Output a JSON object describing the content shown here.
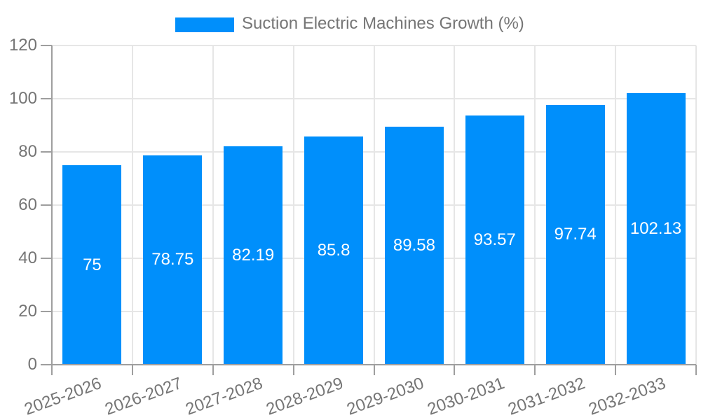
{
  "chart_data": {
    "type": "bar",
    "title": "Suction Electric Machines Growth (%)",
    "legend_position": "top",
    "categories": [
      "2025-2026",
      "2026-2027",
      "2027-2028",
      "2028-2029",
      "2029-2030",
      "2030-2031",
      "2031-2032",
      "2032-2033"
    ],
    "series": [
      {
        "name": "Suction Electric Machines Growth (%)",
        "values": [
          75,
          78.75,
          82.19,
          85.8,
          89.58,
          93.57,
          97.74,
          102.13
        ],
        "labels": [
          "75",
          "78.75",
          "82.19",
          "85.8",
          "89.58",
          "93.57",
          "97.74",
          "102.13"
        ]
      }
    ],
    "xlabel": "",
    "ylabel": "",
    "ylim": [
      0,
      120
    ],
    "yticks": [
      0,
      20,
      40,
      60,
      80,
      100,
      120
    ],
    "ytick_labels": [
      "0",
      "20",
      "40",
      "60",
      "80",
      "100",
      "120"
    ],
    "grid": true,
    "colors": {
      "bar": "#008FFB",
      "value_label": "#FFFFFF",
      "axis_text": "#757575",
      "axis_line": "#9E9E9E",
      "gridline": "#E6E6E6",
      "background": "#FFFFFF"
    }
  }
}
